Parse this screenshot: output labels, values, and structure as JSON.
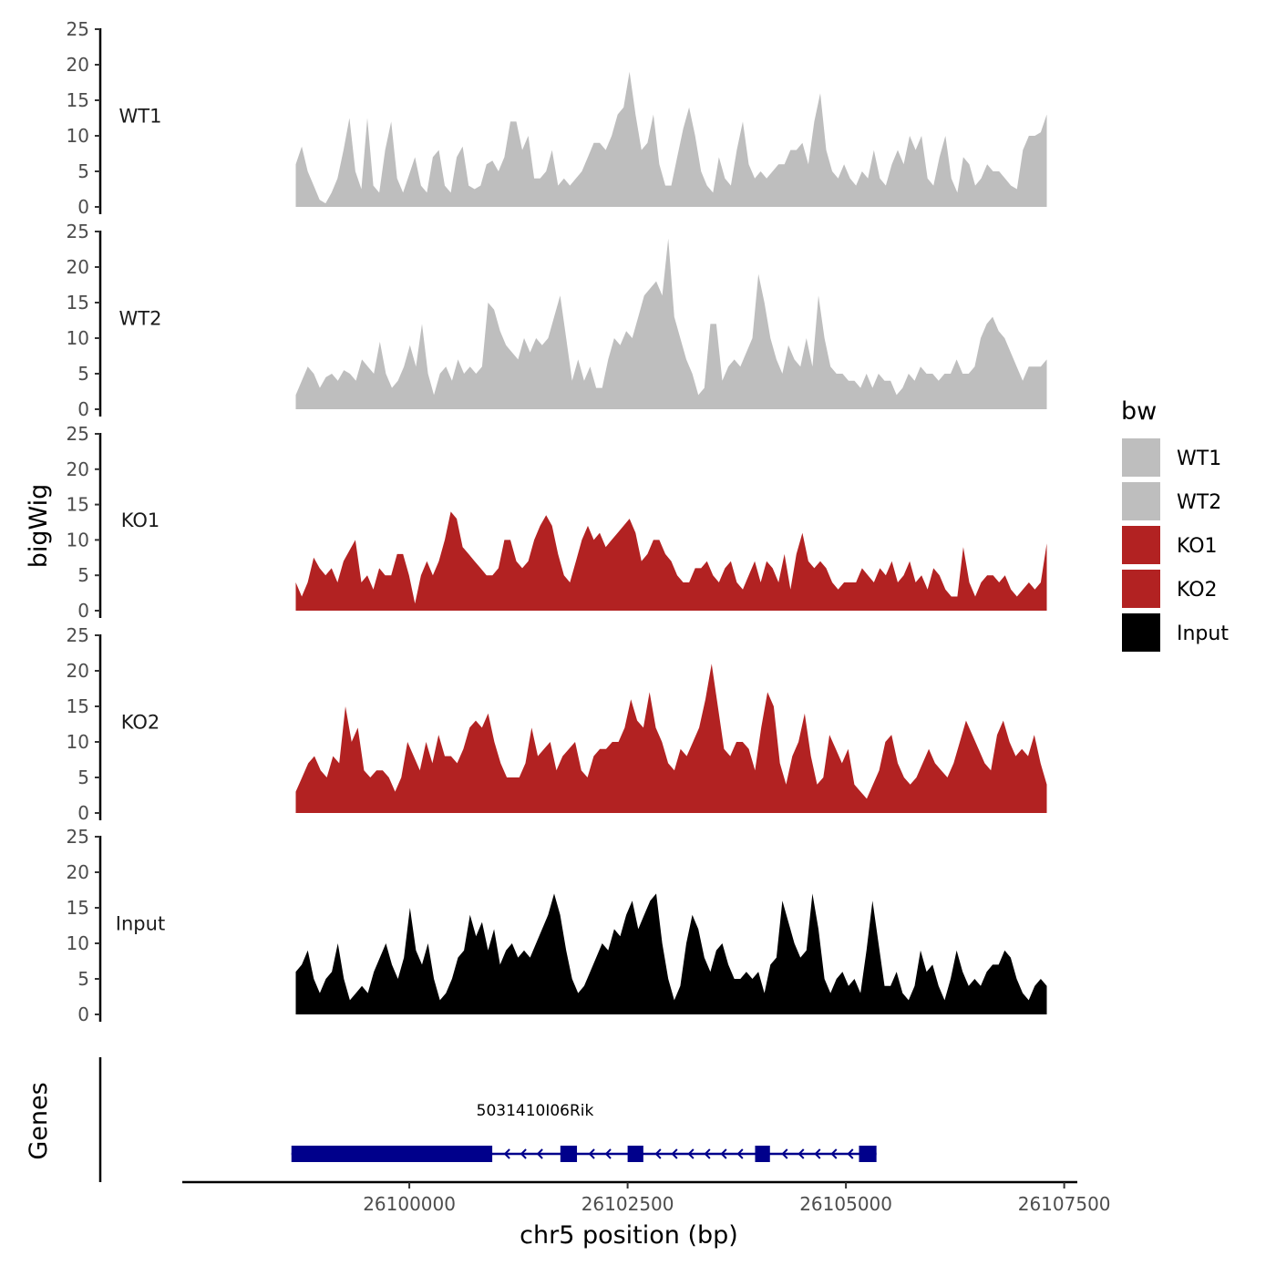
{
  "chart_data": {
    "type": "area",
    "ylabel": "bigWig",
    "xlabel": "chr5 position (bp)",
    "genes_label": "Genes",
    "xlim": [
      26097400,
      26107650
    ],
    "ylim": [
      0,
      25
    ],
    "y_ticks": [
      "0",
      "5",
      "10",
      "15",
      "20",
      "25"
    ],
    "x_ticks": [
      {
        "value": 26100000,
        "label": "26100000"
      },
      {
        "value": 26102500,
        "label": "26102500"
      },
      {
        "value": 26105000,
        "label": "26105000"
      },
      {
        "value": 26107500,
        "label": "26107500"
      }
    ],
    "x_start": 26098700,
    "x_end": 26107300,
    "legend": {
      "title": "bw",
      "entries": [
        {
          "label": "WT1",
          "color": "#bebebe"
        },
        {
          "label": "WT2",
          "color": "#bebebe"
        },
        {
          "label": "KO1",
          "color": "#b22222"
        },
        {
          "label": "KO2",
          "color": "#b22222"
        },
        {
          "label": "Input",
          "color": "#000000"
        }
      ]
    },
    "series": [
      {
        "name": "WT1",
        "color": "#bebebe",
        "values": [
          6,
          8.5,
          5,
          3,
          1,
          0.5,
          2,
          4,
          8,
          12.5,
          5,
          2.5,
          12.5,
          3,
          2,
          8,
          12,
          4,
          2,
          4.5,
          7,
          3,
          2,
          7,
          8,
          3,
          2,
          7,
          8.5,
          3,
          2.5,
          3,
          6,
          6.5,
          5,
          7,
          12,
          12,
          8,
          10,
          4,
          4,
          5,
          8,
          3,
          4,
          3,
          4,
          5,
          7,
          9,
          9,
          8,
          10,
          13,
          14,
          19,
          13,
          8,
          9,
          13,
          6,
          3,
          3,
          7,
          11,
          14,
          10,
          5,
          3,
          2,
          7,
          4,
          3,
          8,
          12,
          6,
          4,
          5,
          4,
          5,
          6,
          6,
          8,
          8,
          9,
          6,
          12,
          16,
          8,
          5,
          4,
          6,
          4,
          3,
          5,
          4,
          8,
          4,
          3,
          6,
          8,
          6,
          10,
          8,
          10,
          4,
          3,
          7,
          10,
          4,
          2,
          7,
          6,
          3,
          4,
          6,
          5,
          5,
          4,
          3,
          2.5,
          8,
          10,
          10,
          10.5,
          13
        ]
      },
      {
        "name": "WT2",
        "color": "#bebebe",
        "values": [
          2,
          4,
          6,
          5,
          3,
          4.5,
          5,
          4,
          5.5,
          5,
          4,
          7,
          6,
          5,
          9.5,
          5,
          3,
          4,
          6,
          9,
          6,
          12,
          5,
          2,
          5,
          6,
          4,
          7,
          5,
          6,
          5,
          6,
          15,
          14,
          11,
          9,
          8,
          7,
          10,
          8,
          10,
          9,
          10,
          13,
          16,
          10,
          4,
          7,
          4,
          6,
          3,
          3,
          7,
          10,
          9,
          11,
          10,
          13,
          16,
          17,
          18,
          16,
          24,
          13,
          10,
          7,
          5,
          2,
          3,
          12,
          12,
          4,
          6,
          7,
          6,
          8,
          10,
          19,
          15,
          10,
          7,
          5,
          9,
          7,
          6,
          10,
          6,
          16,
          10,
          6,
          5,
          5,
          4,
          4,
          3,
          5,
          3,
          5,
          4,
          4,
          2,
          3,
          5,
          4,
          6,
          5,
          5,
          4,
          5,
          5,
          7,
          5,
          5,
          6,
          10,
          12,
          13,
          11,
          10,
          8,
          6,
          4,
          6,
          6,
          6,
          7
        ]
      },
      {
        "name": "KO1",
        "color": "#b22222",
        "values": [
          4,
          2,
          4,
          7.5,
          6,
          5,
          6,
          4,
          7,
          8.5,
          10,
          4,
          5,
          3,
          6,
          5,
          5,
          8,
          8,
          5,
          1,
          5,
          7,
          5,
          7,
          10,
          14,
          13,
          9,
          8,
          7,
          6,
          5,
          5,
          6,
          10,
          10,
          7,
          6,
          7,
          10,
          12,
          13.5,
          12,
          8,
          5,
          4,
          7,
          10,
          12,
          10,
          11,
          9,
          10,
          11,
          12,
          13,
          11,
          7,
          8,
          10,
          10,
          8,
          7,
          5,
          4,
          4,
          6,
          6,
          7,
          5,
          4,
          6,
          7,
          4,
          3,
          5,
          7,
          4,
          7,
          6,
          4,
          8,
          3,
          8,
          11,
          7,
          6,
          7,
          6,
          4,
          3,
          4,
          4,
          4,
          6,
          5,
          4,
          6,
          5,
          7,
          4,
          5,
          7,
          4,
          5,
          3,
          6,
          5,
          3,
          2,
          2,
          9,
          4,
          2,
          4,
          5,
          5,
          4,
          5,
          3,
          2,
          3,
          4,
          3,
          4,
          9.5
        ]
      },
      {
        "name": "KO2",
        "color": "#b22222",
        "values": [
          3,
          5,
          7,
          8,
          6,
          5,
          8,
          7,
          15,
          10,
          12,
          6,
          5,
          6,
          6,
          5,
          3,
          5,
          10,
          8,
          6,
          10,
          7,
          11,
          8,
          8,
          7,
          9,
          12,
          13,
          12,
          14,
          10,
          7,
          5,
          5,
          5,
          7,
          12,
          8,
          9,
          10,
          6,
          8,
          9,
          10,
          6,
          5,
          8,
          9,
          9,
          10,
          10,
          12,
          16,
          13,
          12,
          17,
          12,
          10,
          7,
          6,
          9,
          8,
          10,
          12,
          16,
          21,
          15,
          9,
          8,
          10,
          10,
          9,
          6,
          12,
          17,
          15,
          7,
          4,
          8,
          10,
          14,
          8,
          4,
          5,
          11,
          9,
          7,
          9,
          4,
          3,
          2,
          4,
          6,
          10,
          11,
          7,
          5,
          4,
          5,
          7,
          9,
          7,
          6,
          5,
          7,
          10,
          13,
          11,
          9,
          7,
          6,
          11,
          13,
          10,
          8,
          9,
          8,
          11,
          7,
          4
        ]
      },
      {
        "name": "Input",
        "color": "#000000",
        "values": [
          6,
          7,
          9,
          5,
          3,
          5,
          6,
          10,
          5,
          2,
          3,
          4,
          3,
          6,
          8,
          10,
          7,
          5,
          8,
          15,
          9,
          7,
          10,
          5,
          2,
          3,
          5,
          8,
          9,
          14,
          11,
          13,
          9,
          12,
          7,
          9,
          10,
          8,
          9,
          8,
          10,
          12,
          14,
          17,
          14,
          9,
          5,
          3,
          4,
          6,
          8,
          10,
          9,
          12,
          11,
          14,
          16,
          12,
          14,
          16,
          17,
          10,
          5,
          2,
          4,
          10,
          14,
          12,
          8,
          6,
          9,
          10,
          7,
          5,
          5,
          6,
          5,
          6,
          3,
          7,
          8,
          16,
          13,
          10,
          8,
          9,
          17,
          12,
          5,
          3,
          5,
          6,
          4,
          5,
          3,
          9,
          16,
          10,
          4,
          4,
          6,
          3,
          2,
          4,
          9,
          6,
          7,
          4,
          2,
          5,
          9,
          6,
          4,
          5,
          4,
          6,
          7,
          7,
          9,
          8,
          5,
          3,
          2,
          4,
          5,
          4
        ]
      }
    ],
    "gene": {
      "name": "5031410I06Rik",
      "color": "#00008b",
      "start": 26098650,
      "end": 26105350,
      "strand": "-",
      "exons": [
        {
          "start": 26098650,
          "end": 26100950
        },
        {
          "start": 26101730,
          "end": 26101920
        },
        {
          "start": 26102500,
          "end": 26102680
        },
        {
          "start": 26103960,
          "end": 26104130
        },
        {
          "start": 26105150,
          "end": 26105350
        }
      ]
    }
  }
}
